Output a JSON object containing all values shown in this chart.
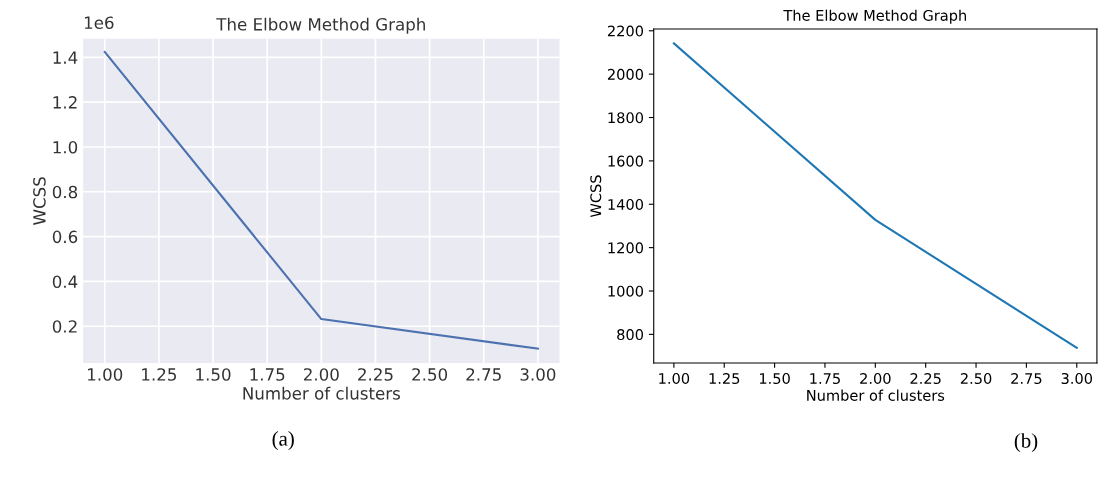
{
  "chart_data": [
    {
      "type": "line",
      "title": "The Elbow Method Graph",
      "xlabel": "Number of clusters",
      "ylabel": "WCSS",
      "x": [
        1.0,
        2.0,
        3.0
      ],
      "series": [
        {
          "color": "#4c72b0",
          "values": [
            1.424,
            0.232,
            0.1
          ]
        }
      ],
      "xlim": [
        0.9,
        3.1
      ],
      "xticks": [
        {
          "value": 1.0,
          "label": "1.00"
        },
        {
          "value": 1.25,
          "label": "1.25"
        },
        {
          "value": 1.5,
          "label": "1.50"
        },
        {
          "value": 1.75,
          "label": "1.75"
        },
        {
          "value": 2.0,
          "label": "2.00"
        },
        {
          "value": 2.25,
          "label": "2.25"
        },
        {
          "value": 2.5,
          "label": "2.50"
        },
        {
          "value": 2.75,
          "label": "2.75"
        },
        {
          "value": 3.0,
          "label": "3.00"
        }
      ],
      "ylim": [
        0.036,
        1.483
      ],
      "yticks": [
        0.2,
        0.4,
        0.6,
        0.8,
        {
          "value": 1.0,
          "label": "1.0"
        },
        1.2,
        1.4
      ],
      "grid": true,
      "annotations": [
        "1e6",
        "(a)"
      ]
    },
    {
      "type": "line",
      "title": "The Elbow Method Graph",
      "xlabel": "Number of clusters",
      "ylabel": "WCSS",
      "x": [
        1.0,
        2.0,
        3.0
      ],
      "series": [
        {
          "color": "#1f77b4",
          "values": [
            2142,
            1328,
            738
          ]
        }
      ],
      "xlim": [
        0.9,
        3.1
      ],
      "xticks": [
        {
          "value": 1.0,
          "label": "1.00"
        },
        {
          "value": 1.25,
          "label": "1.25"
        },
        {
          "value": 1.5,
          "label": "1.50"
        },
        {
          "value": 1.75,
          "label": "1.75"
        },
        {
          "value": 2.0,
          "label": "2.00"
        },
        {
          "value": 2.25,
          "label": "2.25"
        },
        {
          "value": 2.5,
          "label": "2.50"
        },
        {
          "value": 2.75,
          "label": "2.75"
        },
        {
          "value": 3.0,
          "label": "3.00"
        }
      ],
      "ylim": [
        668,
        2208
      ],
      "yticks": [
        800,
        1000,
        1200,
        1400,
        1600,
        1800,
        2000,
        2200
      ],
      "grid": false,
      "annotations": [
        "(b)"
      ]
    }
  ]
}
